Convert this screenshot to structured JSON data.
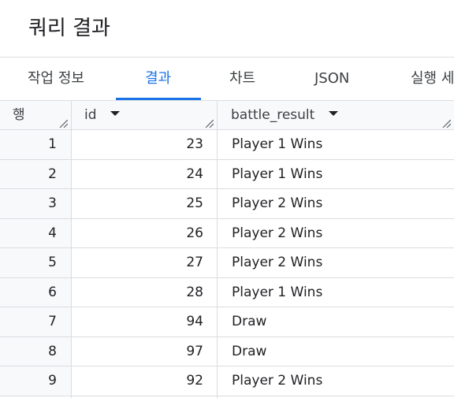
{
  "page": {
    "title": "쿼리 결과"
  },
  "tabs": [
    {
      "label": "작업 정보",
      "active": false
    },
    {
      "label": "결과",
      "active": true
    },
    {
      "label": "차트",
      "active": false
    },
    {
      "label": "JSON",
      "active": false
    },
    {
      "label": "실행 세",
      "active": false
    }
  ],
  "table": {
    "columns": [
      {
        "key": "row",
        "label": "행"
      },
      {
        "key": "id",
        "label": "id"
      },
      {
        "key": "battle_result",
        "label": "battle_result"
      }
    ],
    "rows": [
      {
        "row": "1",
        "id": "23",
        "battle_result": "Player 1 Wins"
      },
      {
        "row": "2",
        "id": "24",
        "battle_result": "Player 1 Wins"
      },
      {
        "row": "3",
        "id": "25",
        "battle_result": "Player 2 Wins"
      },
      {
        "row": "4",
        "id": "26",
        "battle_result": "Player 2 Wins"
      },
      {
        "row": "5",
        "id": "27",
        "battle_result": "Player 2 Wins"
      },
      {
        "row": "6",
        "id": "28",
        "battle_result": "Player 1 Wins"
      },
      {
        "row": "7",
        "id": "94",
        "battle_result": "Draw"
      },
      {
        "row": "8",
        "id": "97",
        "battle_result": "Draw"
      },
      {
        "row": "9",
        "id": "92",
        "battle_result": "Player 2 Wins"
      }
    ]
  },
  "colors": {
    "accent": "#1a73e8",
    "border": "#dadce0",
    "header_bg": "#f8f9fa",
    "text": "#202124"
  },
  "icons": {
    "sort": "caret-down-icon",
    "resize": "column-resize-icon"
  }
}
